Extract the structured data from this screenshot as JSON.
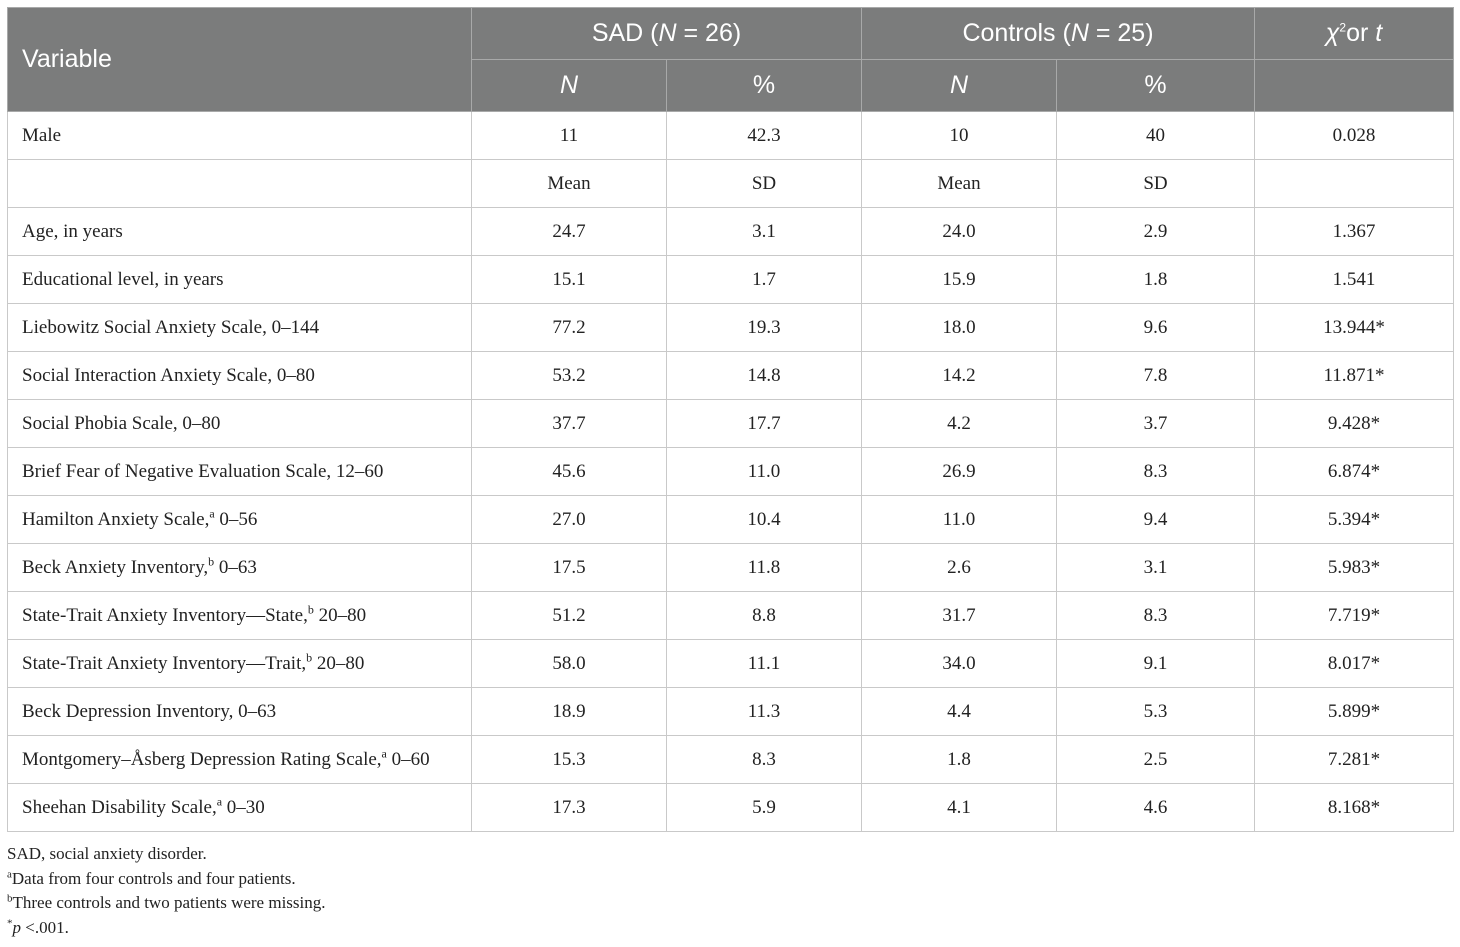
{
  "header": {
    "variable": "Variable",
    "sad_group_prefix": "SAD (",
    "sad_group_n_italic": "N",
    "sad_group_suffix": " = 26)",
    "controls_group_prefix": "Controls (",
    "controls_group_n_italic": "N",
    "controls_group_suffix": " = 25)",
    "stat_chi": "χ",
    "stat_sup": "2",
    "stat_or": "or ",
    "stat_t": "t",
    "sub_n": "N",
    "sub_pct": "%"
  },
  "male_row": {
    "label": "Male",
    "cells": [
      "11",
      "42.3",
      "10",
      "40",
      "0.028"
    ]
  },
  "subheader_row": {
    "cells": [
      "Mean",
      "SD",
      "Mean",
      "SD",
      ""
    ]
  },
  "rows": [
    {
      "label": "Age, in years",
      "sup": "",
      "range": "",
      "cells": [
        "24.7",
        "3.1",
        "24.0",
        "2.9",
        "1.367"
      ]
    },
    {
      "label": "Educational level, in years",
      "sup": "",
      "range": "",
      "cells": [
        "15.1",
        "1.7",
        "15.9",
        "1.8",
        "1.541"
      ]
    },
    {
      "label": "Liebowitz Social Anxiety Scale, 0–144",
      "sup": "",
      "range": "",
      "cells": [
        "77.2",
        "19.3",
        "18.0",
        "9.6",
        "13.944*"
      ]
    },
    {
      "label": "Social Interaction Anxiety Scale, 0–80",
      "sup": "",
      "range": "",
      "cells": [
        "53.2",
        "14.8",
        "14.2",
        "7.8",
        "11.871*"
      ]
    },
    {
      "label": "Social Phobia Scale, 0–80",
      "sup": "",
      "range": "",
      "cells": [
        "37.7",
        "17.7",
        "4.2",
        "3.7",
        "9.428*"
      ]
    },
    {
      "label": "Brief Fear of Negative Evaluation Scale, 12–60",
      "sup": "",
      "range": "",
      "cells": [
        "45.6",
        "11.0",
        "26.9",
        "8.3",
        "6.874*"
      ]
    },
    {
      "label": "Hamilton Anxiety Scale,",
      "sup": "a",
      "range": " 0–56",
      "cells": [
        "27.0",
        "10.4",
        "11.0",
        "9.4",
        "5.394*"
      ]
    },
    {
      "label": "Beck Anxiety Inventory,",
      "sup": "b",
      "range": " 0–63",
      "cells": [
        "17.5",
        "11.8",
        "2.6",
        "3.1",
        "5.983*"
      ]
    },
    {
      "label": "State-Trait Anxiety Inventory—State,",
      "sup": "b",
      "range": " 20–80",
      "cells": [
        "51.2",
        "8.8",
        "31.7",
        "8.3",
        "7.719*"
      ]
    },
    {
      "label": "State-Trait Anxiety Inventory—Trait,",
      "sup": "b",
      "range": " 20–80",
      "cells": [
        "58.0",
        "11.1",
        "34.0",
        "9.1",
        "8.017*"
      ]
    },
    {
      "label": "Beck Depression Inventory, 0–63",
      "sup": "",
      "range": "",
      "cells": [
        "18.9",
        "11.3",
        "4.4",
        "5.3",
        "5.899*"
      ]
    },
    {
      "label": "Montgomery–Åsberg Depression Rating Scale,",
      "sup": "a",
      "range": " 0–60",
      "cells": [
        "15.3",
        "8.3",
        "1.8",
        "2.5",
        "7.281*"
      ]
    },
    {
      "label": "Sheehan Disability Scale,",
      "sup": "a",
      "range": " 0–30",
      "cells": [
        "17.3",
        "5.9",
        "4.1",
        "4.6",
        "8.168*"
      ]
    }
  ],
  "notes": {
    "abbrev": "SAD, social anxiety disorder.",
    "a_mark": "a",
    "a_text": "Data from four controls and four patients.",
    "b_mark": "b",
    "b_text": "Three controls and two patients were missing.",
    "p_star": "*",
    "p_italic": "p",
    "p_text": " <.001."
  }
}
